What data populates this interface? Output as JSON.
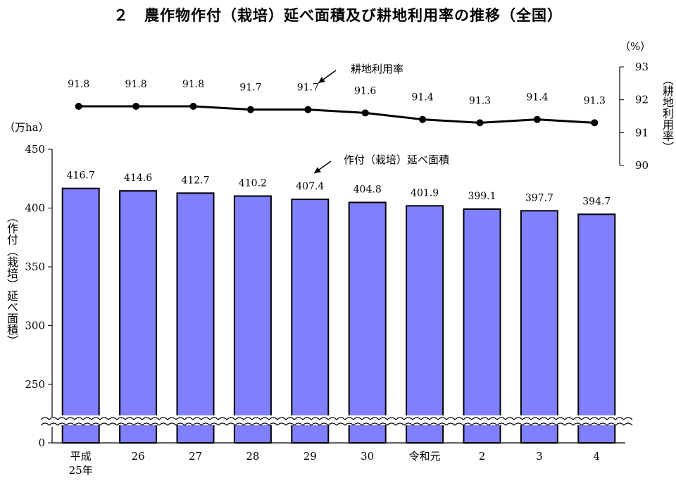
{
  "title": "２　農作物作付（栽培）延べ面積及び耕地利用率の推移（全国）",
  "bar_unit": "（万ha）",
  "bar_axis_label": "（作付（栽培）延べ面積）",
  "line_unit": "（%）",
  "line_axis_label": "（耕地利用率）",
  "bar_annotation": "作付（栽培）延べ面積",
  "line_annotation": "耕地利用率",
  "colors": {
    "bar": "#8080ff",
    "line": "#000000"
  },
  "chart_data": [
    {
      "type": "bar",
      "categories": [
        "平成\n25年",
        "26",
        "27",
        "28",
        "29",
        "30",
        "令和元",
        "2",
        "3",
        "4"
      ],
      "series": [
        {
          "name": "作付（栽培）延べ面積",
          "values": [
            416.7,
            414.6,
            412.7,
            410.2,
            407.4,
            404.8,
            401.9,
            399.1,
            397.7,
            394.7
          ]
        }
      ],
      "ylim": [
        0,
        450
      ],
      "yticks": [
        0,
        250,
        300,
        350,
        400,
        450
      ],
      "axis_break": true,
      "data_labels": [
        "416.7",
        "414.6",
        "412.7",
        "410.2",
        "407.4",
        "404.8",
        "401.9",
        "399.1",
        "397.7",
        "394.7"
      ]
    },
    {
      "type": "line",
      "categories": [
        "平成\n25年",
        "26",
        "27",
        "28",
        "29",
        "30",
        "令和元",
        "2",
        "3",
        "4"
      ],
      "series": [
        {
          "name": "耕地利用率",
          "values": [
            91.8,
            91.8,
            91.8,
            91.7,
            91.7,
            91.6,
            91.4,
            91.3,
            91.4,
            91.3
          ]
        }
      ],
      "ylim": [
        90,
        93
      ],
      "yticks": [
        90,
        91,
        92,
        93
      ],
      "data_labels": [
        "91.8",
        "91.8",
        "91.8",
        "91.7",
        "91.7",
        "91.6",
        "91.4",
        "91.3",
        "91.4",
        "91.3"
      ]
    }
  ]
}
